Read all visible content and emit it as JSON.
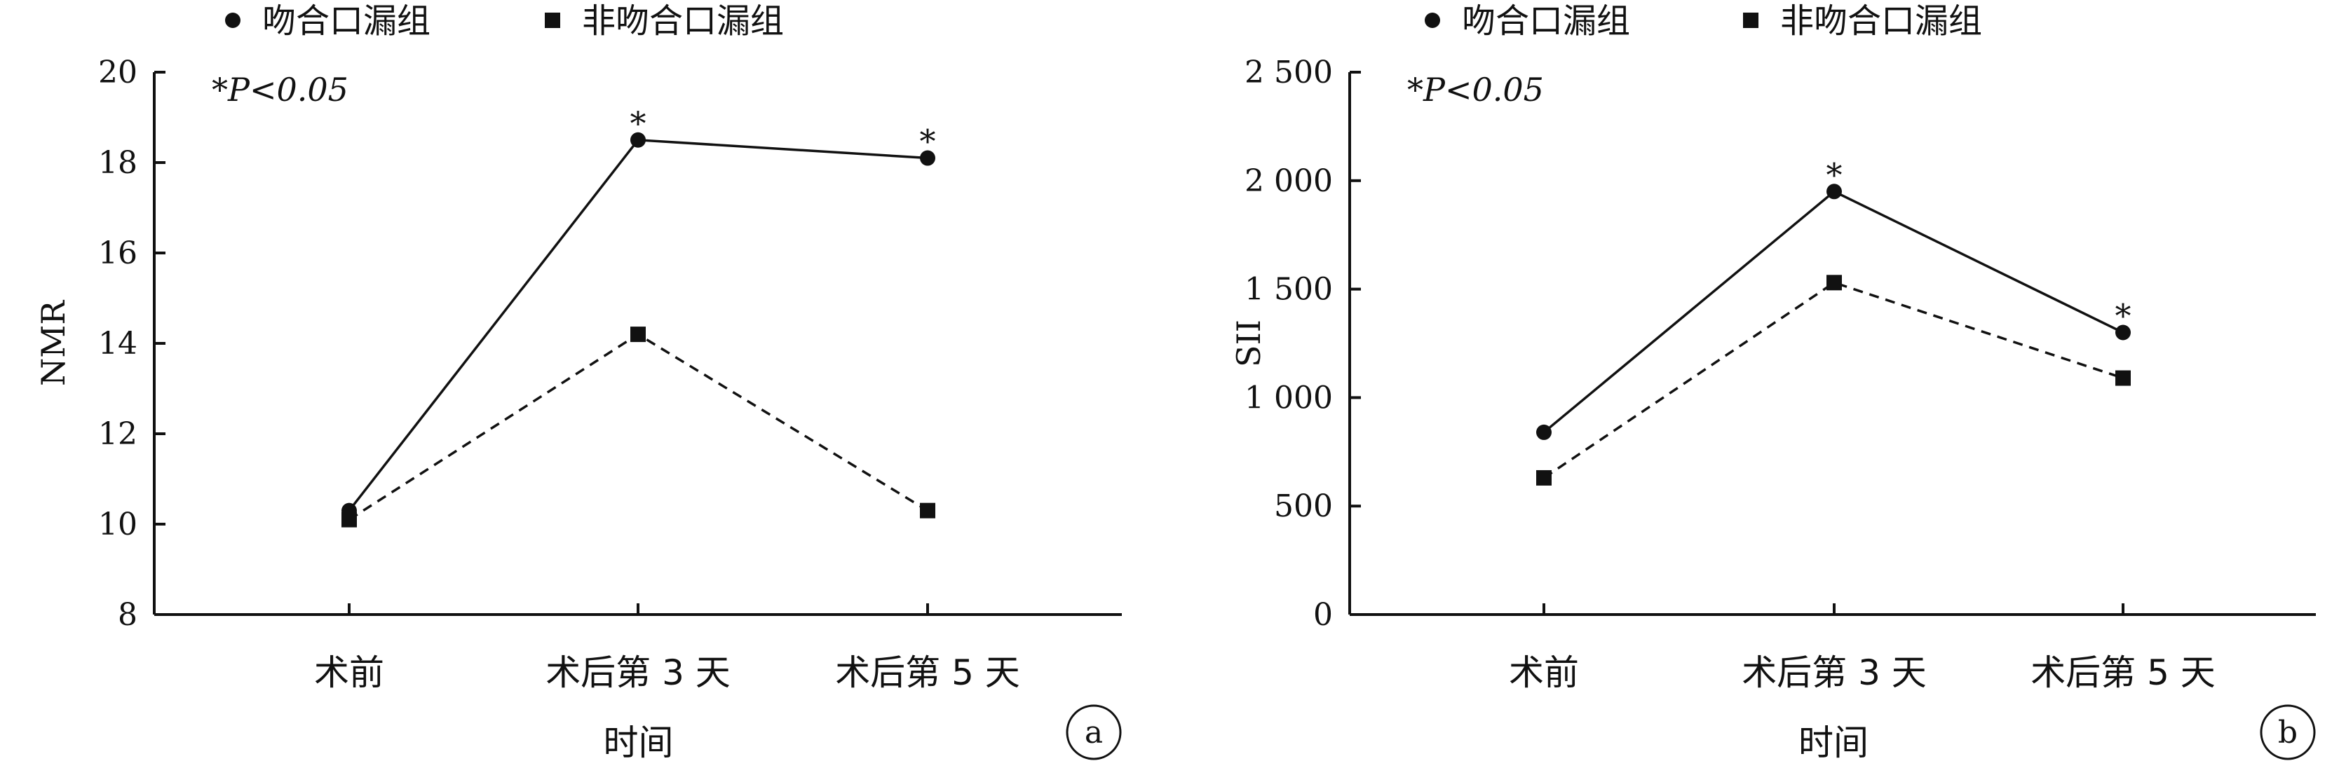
{
  "legend": {
    "series_a_label": "吻合口漏组",
    "series_b_label": "非吻合口漏组"
  },
  "chart_data": [
    {
      "type": "line",
      "panel_label": "a",
      "annotation": "*P<0.05",
      "xlabel": "时间",
      "ylabel": "NMR",
      "categories": [
        "术前",
        "术后第 3 天",
        "术后第 5 天"
      ],
      "ylim": [
        8,
        20
      ],
      "yticks": [
        8,
        10,
        12,
        14,
        16,
        18,
        20
      ],
      "ytick_labels": [
        "8",
        "10",
        "12",
        "14",
        "16",
        "18",
        "20"
      ],
      "grid": false,
      "series": [
        {
          "name": "吻合口漏组",
          "marker": "circle",
          "line": "solid",
          "values": [
            10.3,
            18.5,
            18.1
          ],
          "significant": [
            false,
            true,
            true
          ]
        },
        {
          "name": "非吻合口漏组",
          "marker": "square",
          "line": "dashed",
          "values": [
            10.1,
            14.2,
            10.3
          ],
          "significant": [
            false,
            false,
            false
          ]
        }
      ]
    },
    {
      "type": "line",
      "panel_label": "b",
      "annotation": "*P<0.05",
      "xlabel": "时间",
      "ylabel": "SII",
      "categories": [
        "术前",
        "术后第 3 天",
        "术后第 5 天"
      ],
      "ylim": [
        0,
        2500
      ],
      "yticks": [
        0,
        500,
        1000,
        1500,
        2000,
        2500
      ],
      "ytick_labels": [
        "0",
        "500",
        "1 000",
        "1 500",
        "2 000",
        "2 500"
      ],
      "grid": false,
      "series": [
        {
          "name": "吻合口漏组",
          "marker": "circle",
          "line": "solid",
          "values": [
            840,
            1950,
            1300
          ],
          "significant": [
            false,
            true,
            true
          ]
        },
        {
          "name": "非吻合口漏组",
          "marker": "square",
          "line": "dashed",
          "values": [
            630,
            1530,
            1090
          ],
          "significant": [
            false,
            false,
            false
          ]
        }
      ]
    }
  ]
}
